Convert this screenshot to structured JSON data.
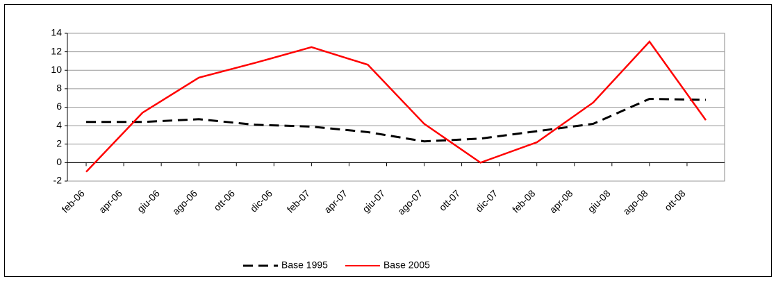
{
  "chart_data": {
    "type": "line",
    "x": [
      0,
      3,
      6,
      9,
      12,
      15,
      18,
      21,
      24,
      27,
      30,
      33
    ],
    "series": [
      {
        "name": "Base 1995",
        "color": "#000000",
        "dash": true,
        "values": [
          4.4,
          4.4,
          4.7,
          4.1,
          3.9,
          3.3,
          2.3,
          2.6,
          3.4,
          4.2,
          6.9,
          6.8
        ]
      },
      {
        "name": "Base 2005",
        "color": "#ff0000",
        "dash": false,
        "values": [
          -1,
          5.4,
          9.2,
          10.8,
          12.5,
          10.6,
          4.2,
          0,
          2.2,
          6.5,
          13.1,
          4.6
        ]
      }
    ],
    "xlim": [
      -1,
      34
    ],
    "xticks": [
      {
        "value": 0,
        "label": "feb-06"
      },
      {
        "value": 2,
        "label": "apr-06"
      },
      {
        "value": 4,
        "label": "giu-06"
      },
      {
        "value": 6,
        "label": "ago-06"
      },
      {
        "value": 8,
        "label": "ott-06"
      },
      {
        "value": 10,
        "label": "dic-06"
      },
      {
        "value": 12,
        "label": "feb-07"
      },
      {
        "value": 14,
        "label": "apr-07"
      },
      {
        "value": 16,
        "label": "giu-07"
      },
      {
        "value": 18,
        "label": "ago-07"
      },
      {
        "value": 20,
        "label": "ott-07"
      },
      {
        "value": 22,
        "label": "dic-07"
      },
      {
        "value": 24,
        "label": "feb-08"
      },
      {
        "value": 26,
        "label": "apr-08"
      },
      {
        "value": 28,
        "label": "giu-08"
      },
      {
        "value": 30,
        "label": "ago-08"
      },
      {
        "value": 32,
        "label": "ott-08"
      }
    ],
    "ylim": [
      -2,
      14
    ],
    "yticks": [
      -2,
      0,
      2,
      4,
      6,
      8,
      10,
      12,
      14
    ],
    "grid": true,
    "legend": "bottom"
  }
}
